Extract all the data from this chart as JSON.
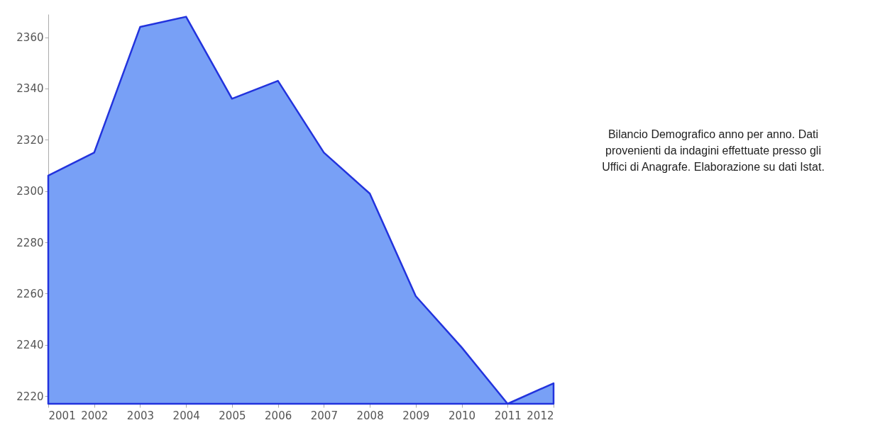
{
  "chart_data": {
    "type": "area",
    "x": [
      2001,
      2002,
      2003,
      2004,
      2005,
      2006,
      2007,
      2008,
      2009,
      2010,
      2011,
      2012
    ],
    "series": [
      {
        "color": "#78a0f6",
        "values": [
          2306,
          2315,
          2364,
          2368,
          2336,
          2343,
          2315,
          2299,
          2259,
          2239,
          2217,
          2225
        ]
      }
    ],
    "xlim": [
      2001,
      2012
    ],
    "xticks": [
      2001,
      2002,
      2003,
      2004,
      2005,
      2006,
      2007,
      2008,
      2009,
      2010,
      2011,
      2012
    ],
    "ylim": [
      2217,
      2369
    ],
    "yticks": [
      2220,
      2240,
      2260,
      2280,
      2300,
      2320,
      2340,
      2360
    ],
    "grid": false,
    "annotations": [
      "Bilancio Demografico anno per anno. Dati provenienti da indagini effettuate presso gli Uffici di Anagrafe. Elaborazione su dati Istat."
    ]
  }
}
